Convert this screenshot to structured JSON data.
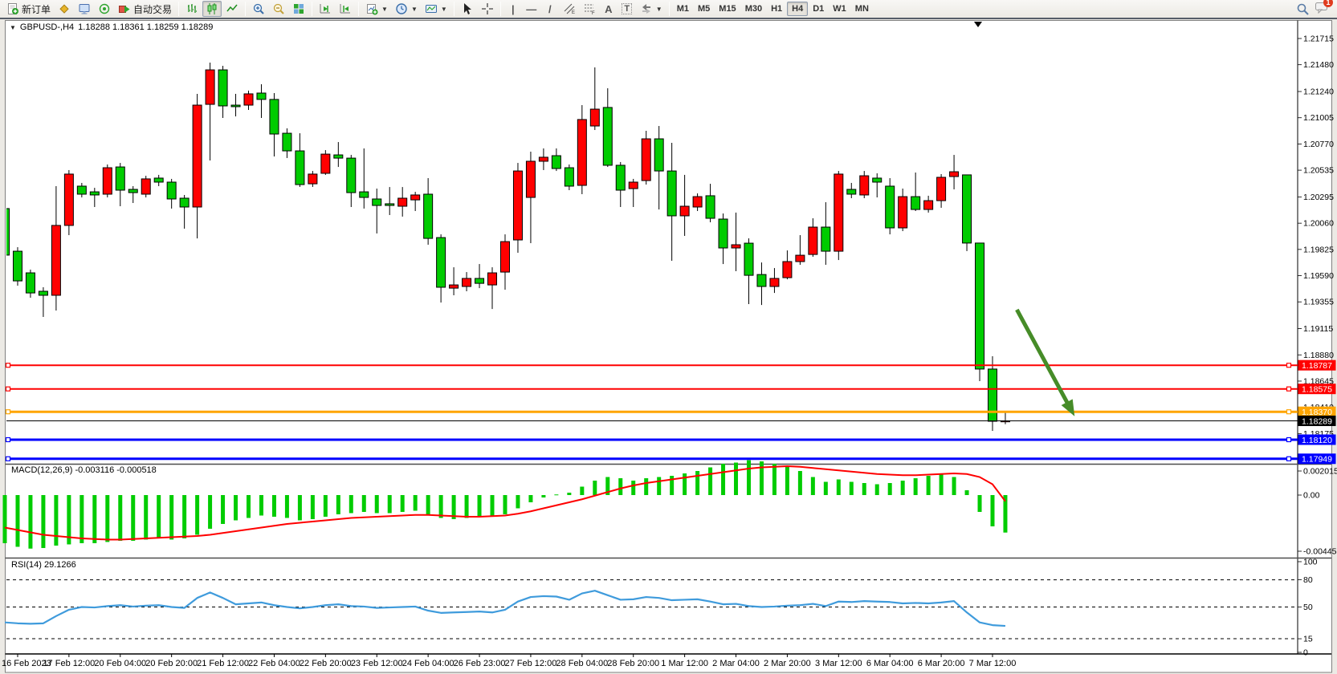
{
  "toolbar": {
    "new_order_label": "新订单",
    "auto_trading_label": "自动交易",
    "text_tool_label": "A",
    "textbox_tool_label": "T",
    "channel_tool_letter": "E",
    "fibo_tool_letter": "F",
    "timeframes": [
      "M1",
      "M5",
      "M15",
      "M30",
      "H1",
      "H4",
      "D1",
      "W1",
      "MN"
    ],
    "active_timeframe": "H4",
    "notification_count": "1"
  },
  "header": {
    "symbol": "GBPUSD-,H4",
    "ohlc": "1.18288 1.18361 1.18259 1.18289"
  },
  "chart_data": {
    "type": "candlestick",
    "symbol": "GBPUSD-",
    "timeframe": "H4",
    "up_color": "#ff0000",
    "down_color": "#00cc00",
    "price_axis_ticks": [
      "1.21715",
      "1.21480",
      "1.21240",
      "1.21005",
      "1.20770",
      "1.20535",
      "1.20295",
      "1.20060",
      "1.19825",
      "1.19590",
      "1.19355",
      "1.19115",
      "1.18880",
      "1.18645",
      "1.18410",
      "1.18175",
      "1.17940"
    ],
    "time_axis_labels": [
      "16 Feb 2023",
      "17 Feb 12:00",
      "20 Feb 04:00",
      "20 Feb 20:00",
      "21 Feb 12:00",
      "22 Feb 04:00",
      "22 Feb 20:00",
      "23 Feb 12:00",
      "24 Feb 04:00",
      "26 Feb 23:00",
      "27 Feb 12:00",
      "28 Feb 04:00",
      "28 Feb 20:00",
      "1 Mar 12:00",
      "2 Mar 04:00",
      "2 Mar 20:00",
      "3 Mar 12:00",
      "6 Mar 04:00",
      "6 Mar 20:00",
      "7 Mar 12:00"
    ],
    "time_axis_tick_bars": [
      2,
      6,
      10,
      14,
      18,
      22,
      26,
      30,
      34,
      38,
      42,
      46,
      50,
      54,
      58,
      62,
      66,
      70,
      74,
      78
    ],
    "candles": [
      [
        1.20191,
        1.20227,
        1.19508,
        1.19774
      ],
      [
        1.19809,
        1.19845,
        1.195,
        1.19543
      ],
      [
        1.19615,
        1.19644,
        1.19392,
        1.19435
      ],
      [
        1.1945,
        1.19486,
        1.1922,
        1.19414
      ],
      [
        1.19414,
        1.20392,
        1.19277,
        1.2004
      ],
      [
        1.2004,
        1.20536,
        1.19953,
        1.205
      ],
      [
        1.20392,
        1.20421,
        1.20291,
        1.2032
      ],
      [
        1.20341,
        1.20377,
        1.20205,
        1.20313
      ],
      [
        1.2032,
        1.20586,
        1.20291,
        1.20557
      ],
      [
        1.20564,
        1.206,
        1.20212,
        1.20356
      ],
      [
        1.20363,
        1.20392,
        1.20241,
        1.20334
      ],
      [
        1.2032,
        1.20485,
        1.20291,
        1.20457
      ],
      [
        1.20464,
        1.20493,
        1.20392,
        1.20428
      ],
      [
        1.20428,
        1.20457,
        1.20191,
        1.20277
      ],
      [
        1.20284,
        1.20313,
        1.20011,
        1.20205
      ],
      [
        1.20205,
        1.21219,
        1.19924,
        1.21118
      ],
      [
        1.21125,
        1.21499,
        1.20622,
        1.21434
      ],
      [
        1.21434,
        1.2147,
        1.21003,
        1.21111
      ],
      [
        1.21118,
        1.21219,
        1.21017,
        1.21104
      ],
      [
        1.21118,
        1.21248,
        1.21075,
        1.21219
      ],
      [
        1.21226,
        1.21305,
        1.21003,
        1.21169
      ],
      [
        1.21169,
        1.21226,
        1.20658,
        1.20859
      ],
      [
        1.20866,
        1.2091,
        1.20644,
        1.20708
      ],
      [
        1.20708,
        1.20866,
        1.20385,
        1.20406
      ],
      [
        1.20413,
        1.20528,
        1.20385,
        1.205
      ],
      [
        1.20507,
        1.20715,
        1.20493,
        1.20679
      ],
      [
        1.20672,
        1.20787,
        1.20564,
        1.20643
      ],
      [
        1.20643,
        1.20672,
        1.20205,
        1.20334
      ],
      [
        1.20341,
        1.2073,
        1.20191,
        1.20291
      ],
      [
        1.20277,
        1.2037,
        1.19968,
        1.20219
      ],
      [
        1.20234,
        1.20384,
        1.20133,
        1.20219
      ],
      [
        1.20212,
        1.20384,
        1.20119,
        1.20284
      ],
      [
        1.20269,
        1.20341,
        1.20169,
        1.20313
      ],
      [
        1.2032,
        1.20464,
        1.19867,
        1.19924
      ],
      [
        1.19931,
        1.1996,
        1.19349,
        1.19486
      ],
      [
        1.19478,
        1.19665,
        1.19414,
        1.19507
      ],
      [
        1.19493,
        1.19622,
        1.1945,
        1.19565
      ],
      [
        1.19565,
        1.19694,
        1.19478,
        1.19521
      ],
      [
        1.19507,
        1.19665,
        1.19291,
        1.19615
      ],
      [
        1.19622,
        1.1996,
        1.19464,
        1.19895
      ],
      [
        1.1991,
        1.206,
        1.19795,
        1.20528
      ],
      [
        1.20291,
        1.20701,
        1.19881,
        1.20615
      ],
      [
        1.20615,
        1.2073,
        1.20536,
        1.20651
      ],
      [
        1.20665,
        1.2073,
        1.20528,
        1.2055
      ],
      [
        1.20557,
        1.20586,
        1.20356,
        1.20392
      ],
      [
        1.20399,
        1.21118,
        1.2032,
        1.20989
      ],
      [
        1.20931,
        1.21456,
        1.20895,
        1.21082
      ],
      [
        1.21097,
        1.21269,
        1.20564,
        1.20579
      ],
      [
        1.20579,
        1.20608,
        1.20205,
        1.20356
      ],
      [
        1.2037,
        1.20457,
        1.20205,
        1.20428
      ],
      [
        1.20442,
        1.20888,
        1.20406,
        1.20816
      ],
      [
        1.20816,
        1.20931,
        1.20183,
        1.20528
      ],
      [
        1.20528,
        1.2078,
        1.19723,
        1.20126
      ],
      [
        1.20126,
        1.20493,
        1.19946,
        1.20212
      ],
      [
        1.20205,
        1.20327,
        1.20169,
        1.20298
      ],
      [
        1.20306,
        1.20413,
        1.20068,
        1.20104
      ],
      [
        1.20097,
        1.20147,
        1.19694,
        1.19838
      ],
      [
        1.19838,
        1.20155,
        1.1963,
        1.19867
      ],
      [
        1.19881,
        1.19924,
        1.19335,
        1.19593
      ],
      [
        1.196,
        1.19708,
        1.19327,
        1.19493
      ],
      [
        1.19493,
        1.19658,
        1.19435,
        1.19565
      ],
      [
        1.19572,
        1.19816,
        1.19557,
        1.19716
      ],
      [
        1.19716,
        1.19953,
        1.19687,
        1.19773
      ],
      [
        1.1978,
        1.20104,
        1.19759,
        1.20025
      ],
      [
        1.20025,
        1.20248,
        1.19687,
        1.19809
      ],
      [
        1.19809,
        1.20528,
        1.1973,
        1.205
      ],
      [
        1.20363,
        1.20421,
        1.20284,
        1.2032
      ],
      [
        1.20313,
        1.20528,
        1.20284,
        1.20485
      ],
      [
        1.20464,
        1.20507,
        1.20291,
        1.20428
      ],
      [
        1.20392,
        1.20464,
        1.1996,
        1.20018
      ],
      [
        1.20018,
        1.2037,
        1.19989,
        1.20298
      ],
      [
        1.20298,
        1.20514,
        1.20169,
        1.20183
      ],
      [
        1.20183,
        1.20306,
        1.20155,
        1.20262
      ],
      [
        1.20262,
        1.205,
        1.20198,
        1.20471
      ],
      [
        1.20478,
        1.20672,
        1.20363,
        1.20521
      ],
      [
        1.20493,
        1.20493,
        1.1981,
        1.19882
      ],
      [
        1.19882,
        1.19882,
        1.18645,
        1.18753
      ],
      [
        1.18753,
        1.18868,
        1.18199,
        1.18285
      ],
      [
        1.18288,
        1.18361,
        1.18259,
        1.18289
      ]
    ],
    "hlines": [
      {
        "price": 1.18787,
        "color": "#ff0000",
        "width": 2,
        "label": "1.18787"
      },
      {
        "price": 1.18575,
        "color": "#ff0000",
        "width": 2,
        "label": "1.18575"
      },
      {
        "price": 1.1837,
        "color": "#ffa500",
        "width": 3,
        "label": "1.18370"
      },
      {
        "price": 1.1812,
        "color": "#0000ff",
        "width": 3,
        "label": "1.18120"
      },
      {
        "price": 1.17949,
        "color": "#0000ff",
        "width": 3,
        "label": "1.17949"
      }
    ],
    "price_line": {
      "price": 1.18289,
      "label": "1.18289",
      "color": "#000000"
    },
    "arrow": {
      "from_bar": 79.9,
      "from_price": 1.19285,
      "to_bar": 84.4,
      "to_price": 1.1833,
      "color": "#468c28"
    },
    "macd": {
      "label": "MACD(12,26,9) -0.003116 -0.000518",
      "axis_labels": [
        "0.002015",
        "0.00",
        "-0.004451"
      ],
      "hist_color": "#00cc00",
      "signal_color": "#ff0000",
      "histogram": [
        -0.004,
        -0.0043,
        -0.00445,
        -0.0044,
        -0.0042,
        -0.0041,
        -0.004,
        -0.004,
        -0.0039,
        -0.0038,
        -0.0038,
        -0.0037,
        -0.0036,
        -0.0037,
        -0.0036,
        -0.0033,
        -0.0028,
        -0.0024,
        -0.0021,
        -0.0019,
        -0.0017,
        -0.0018,
        -0.0019,
        -0.0021,
        -0.002,
        -0.0018,
        -0.0016,
        -0.0015,
        -0.0014,
        -0.0015,
        -0.0015,
        -0.0014,
        -0.0013,
        -0.0016,
        -0.0019,
        -0.002,
        -0.0019,
        -0.0018,
        -0.0018,
        -0.0016,
        -0.0011,
        -0.0006,
        -0.0002,
        5e-05,
        0.0002,
        0.0007,
        0.0012,
        0.0015,
        0.0014,
        0.0012,
        0.0014,
        0.0015,
        0.0016,
        0.0018,
        0.002,
        0.0023,
        0.0026,
        0.0027,
        0.0029,
        0.0028,
        0.0026,
        0.0024,
        0.002,
        0.0015,
        0.0011,
        0.0013,
        0.0011,
        0.001,
        0.0009,
        0.001,
        0.0012,
        0.0014,
        0.0016,
        0.0018,
        0.0015,
        0.0004,
        -0.0014,
        -0.0026,
        -0.003116
      ],
      "signal": [
        -0.0027,
        -0.0029,
        -0.0031,
        -0.0033,
        -0.0034,
        -0.0035,
        -0.0036,
        -0.00365,
        -0.0037,
        -0.0037,
        -0.00365,
        -0.0036,
        -0.00355,
        -0.0035,
        -0.00345,
        -0.0034,
        -0.0033,
        -0.00315,
        -0.003,
        -0.00285,
        -0.0027,
        -0.00255,
        -0.0024,
        -0.0023,
        -0.0022,
        -0.0021,
        -0.002,
        -0.0019,
        -0.00185,
        -0.0018,
        -0.00175,
        -0.0017,
        -0.00165,
        -0.00165,
        -0.0017,
        -0.00175,
        -0.0018,
        -0.0018,
        -0.00175,
        -0.0017,
        -0.00155,
        -0.00135,
        -0.0011,
        -0.00085,
        -0.0006,
        -0.00035,
        -5e-05,
        0.00025,
        0.00055,
        0.0008,
        0.001,
        0.00115,
        0.0013,
        0.00145,
        0.0016,
        0.00175,
        0.0019,
        0.00205,
        0.0022,
        0.0023,
        0.00235,
        0.0024,
        0.00235,
        0.00225,
        0.00215,
        0.00205,
        0.00195,
        0.00185,
        0.00175,
        0.0017,
        0.00165,
        0.00165,
        0.0017,
        0.00175,
        0.0018,
        0.00175,
        0.0015,
        0.0009,
        -0.000518
      ]
    },
    "rsi": {
      "label": "RSI(14) 29.1266",
      "color": "#3f9bdc",
      "levels": [
        80,
        50,
        15
      ],
      "axis_labels": [
        "100",
        "80",
        "50",
        "15",
        "0"
      ],
      "values": [
        33,
        32,
        31.5,
        32,
        40,
        47,
        50,
        49.5,
        51,
        52,
        50.5,
        51.5,
        52,
        50,
        49,
        60,
        66,
        60,
        53,
        54,
        55,
        52,
        50,
        48.5,
        50,
        52,
        53,
        51,
        50.5,
        49,
        49.5,
        50,
        50.5,
        46,
        43.5,
        44,
        44.5,
        45,
        44,
        47,
        56,
        61,
        62,
        61.5,
        58,
        65,
        68,
        63,
        58,
        58.5,
        61,
        60,
        57.5,
        58,
        58.5,
        56,
        53,
        53.5,
        51,
        50,
        50.5,
        51.5,
        52,
        53.5,
        51,
        56,
        55.5,
        56.5,
        56,
        55.5,
        54,
        54.5,
        54,
        55,
        56.5,
        44,
        33,
        30,
        29.1266
      ]
    }
  }
}
